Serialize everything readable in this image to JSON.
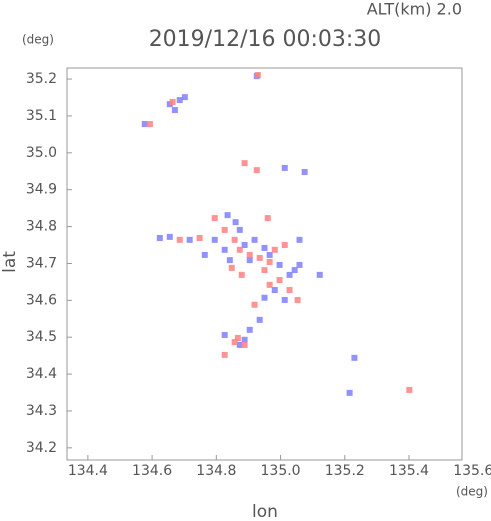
{
  "chart_data": {
    "type": "scatter",
    "title": "2019/12/16 00:03:30",
    "subtitle": "ALT(km) 2.0",
    "x_label": "lon",
    "y_label": "lat",
    "x_unit": "(deg)",
    "y_unit": "(deg)",
    "xlim": [
      134.335,
      135.565
    ],
    "ylim": [
      34.167,
      35.23
    ],
    "xticks": [
      134.4,
      134.6,
      134.8,
      {
        "value": 135.0,
        "label": "135.0"
      },
      135.2,
      135.4,
      135.6
    ],
    "yticks": [
      34.2,
      34.3,
      34.4,
      34.5,
      34.6,
      34.7,
      34.8,
      34.9,
      {
        "value": 35.0,
        "label": "35.0"
      },
      35.1,
      35.2
    ],
    "series": [
      {
        "color": "#7f7fff",
        "x": [
          134.655,
          134.686,
          134.702,
          134.577,
          134.671,
          134.835,
          134.86,
          134.795,
          134.826,
          134.888,
          134.919,
          134.95,
          134.966,
          134.997,
          135.028,
          135.044,
          135.059,
          134.982,
          135.013,
          134.95,
          134.935,
          134.904,
          134.888,
          134.873,
          134.826,
          135.215,
          135.23,
          134.624,
          134.655,
          134.717,
          134.764,
          135.075,
          135.013,
          134.926,
          134.873,
          134.904,
          135.059,
          135.122,
          134.842
        ],
        "values": [
          35.132,
          35.143,
          35.151,
          35.078,
          35.116,
          34.831,
          34.812,
          34.764,
          34.737,
          34.75,
          34.764,
          34.742,
          34.723,
          34.696,
          34.669,
          34.682,
          34.696,
          34.628,
          34.601,
          34.607,
          34.547,
          34.52,
          34.493,
          34.479,
          34.506,
          34.349,
          34.444,
          34.769,
          34.772,
          34.764,
          34.723,
          34.948,
          34.959,
          35.208,
          34.791,
          34.709,
          34.764,
          34.669,
          34.709
        ]
      },
      {
        "color": "#ff8080",
        "x": [
          134.929,
          134.664,
          134.593,
          134.795,
          134.826,
          134.857,
          134.873,
          134.904,
          134.935,
          134.966,
          134.848,
          134.879,
          134.997,
          135.028,
          134.966,
          134.867,
          134.888,
          134.857,
          134.826,
          135.401,
          134.926,
          134.888,
          134.96,
          134.686,
          134.748,
          134.95,
          134.919,
          135.013,
          134.982,
          135.053
        ],
        "values": [
          35.211,
          35.138,
          35.078,
          34.823,
          34.791,
          34.764,
          34.737,
          34.723,
          34.715,
          34.704,
          34.688,
          34.669,
          34.655,
          34.628,
          34.642,
          34.498,
          34.479,
          34.487,
          34.452,
          34.357,
          34.953,
          34.972,
          34.823,
          34.764,
          34.769,
          34.682,
          34.588,
          34.75,
          34.737,
          34.601
        ]
      }
    ]
  }
}
